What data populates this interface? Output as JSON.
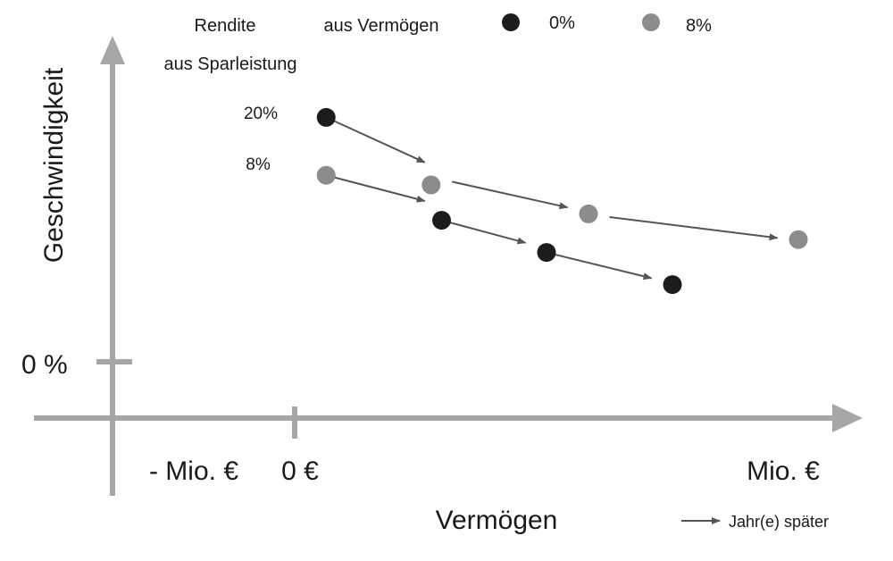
{
  "chart_data": {
    "type": "scatter",
    "xlabel": "Vermögen",
    "ylabel": "Geschwindigkeit",
    "x_ticks": [
      "- Mio. €",
      "0 €",
      "Mio. €"
    ],
    "y_ticks": [
      "0 %"
    ],
    "legend": {
      "header_savings": "Rendite aus Sparleistung",
      "header_savings_line1": "Rendite",
      "header_savings_line2": "aus Sparleistung",
      "header_wealth": "aus Vermögen",
      "entries": [
        {
          "label": "0%",
          "color": "#1c1c1c"
        },
        {
          "label": "8%",
          "color": "#8c8c8c"
        }
      ]
    },
    "savings_labels": [
      "20%",
      "8%"
    ],
    "arrow_hint": "Jahr(e) später",
    "series": [
      {
        "savings_return": "20%",
        "wealth_return": "0%",
        "color": "#1c1c1c",
        "points": [
          [
            0.15,
            0.76
          ],
          [
            0.7,
            0.44
          ],
          [
            1.2,
            0.34
          ],
          [
            1.8,
            0.24
          ]
        ]
      },
      {
        "savings_return": "8%",
        "wealth_return": "8%",
        "color": "#8c8c8c",
        "points": [
          [
            0.15,
            0.58
          ],
          [
            0.65,
            0.55
          ],
          [
            1.4,
            0.46
          ],
          [
            2.4,
            0.38
          ]
        ]
      }
    ],
    "arrows": [
      {
        "series": 0,
        "from": [
          0.15,
          0.76
        ],
        "to": [
          0.62,
          0.62
        ]
      },
      {
        "series": 0,
        "from": [
          0.7,
          0.44
        ],
        "to": [
          1.1,
          0.37
        ]
      },
      {
        "series": 0,
        "from": [
          1.2,
          0.34
        ],
        "to": [
          1.7,
          0.26
        ]
      },
      {
        "series": 0,
        "from": [
          0.15,
          0.58
        ],
        "to": [
          0.62,
          0.5
        ]
      },
      {
        "series": 0,
        "from": [
          0.75,
          0.56
        ],
        "to": [
          1.3,
          0.48
        ]
      },
      {
        "series": 0,
        "from": [
          1.5,
          0.45
        ],
        "to": [
          2.3,
          0.385
        ]
      }
    ]
  }
}
